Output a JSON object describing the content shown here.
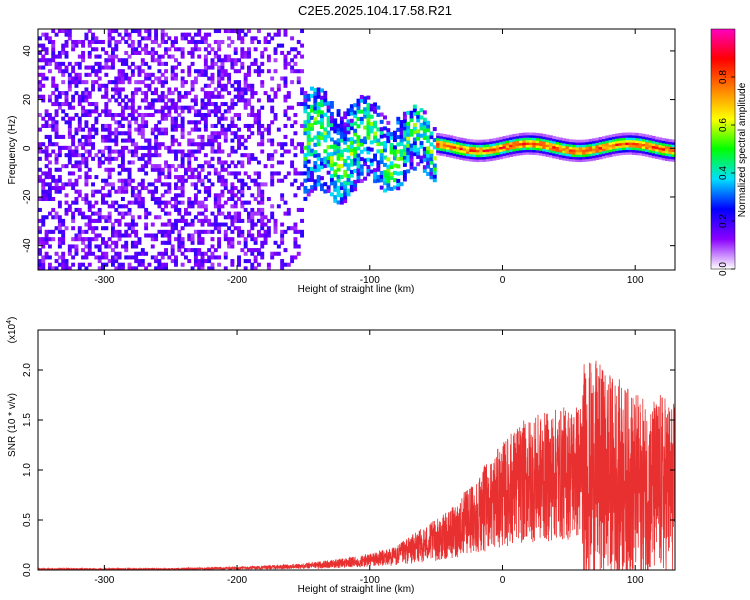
{
  "figure": {
    "title": "C2E5.2025.104.17.58.R21"
  },
  "chart_data": [
    {
      "type": "heatmap",
      "title": "C2E5.2025.104.17.58.R21",
      "xlabel": "Height of straight line (km)",
      "ylabel": "Frequency (Hz)",
      "xlim": [
        -350,
        130
      ],
      "ylim": [
        -50,
        49
      ],
      "x_ticks": [
        -300,
        -200,
        -100,
        0,
        100
      ],
      "y_ticks": [
        -40,
        -20,
        0,
        20,
        40
      ],
      "grid": false,
      "description_regions": [
        {
          "x_range": [
            -350,
            -150
          ],
          "pattern": "broadband low-amplitude noise across all frequencies",
          "amplitude": 0.15
        },
        {
          "x_range": [
            -150,
            -50
          ],
          "pattern": "spread signal between -25 and 25 Hz",
          "amplitude": 0.3
        },
        {
          "x_range": [
            -50,
            130
          ],
          "pattern": "narrow band centred near 0 Hz",
          "amplitude": 0.8
        }
      ],
      "colorbar": {
        "label": "Normalized spectral amplitude",
        "range": [
          0,
          1
        ],
        "ticks": [
          "0.0",
          "0.2",
          "0.4",
          "0.6",
          "0.8"
        ],
        "colors": [
          "#ffffff",
          "#8a00ff",
          "#0000ff",
          "#00e0ff",
          "#00ff00",
          "#ffff00",
          "#ff8000",
          "#ff0000",
          "#ff00c0"
        ]
      }
    },
    {
      "type": "line",
      "xlabel": "Height of straight line (km)",
      "ylabel": "SNR (10 * v/v)",
      "y_multiplier_label": "(x10",
      "y_multiplier_exp": "4",
      "y_multiplier_close": ")",
      "xlim": [
        -350,
        130
      ],
      "ylim": [
        0,
        2.4
      ],
      "x_ticks": [
        -300,
        -200,
        -100,
        0,
        100
      ],
      "y_ticks": [
        "0.0",
        "0.5",
        "1.0",
        "1.5",
        "2.0"
      ],
      "grid": false,
      "series": [
        {
          "color": "#e83030",
          "x": [
            -350,
            -300,
            -250,
            -200,
            -170,
            -150,
            -130,
            -110,
            -100,
            -90,
            -80,
            -70,
            -60,
            -50,
            -40,
            -30,
            -20,
            -10,
            0,
            10,
            20,
            30,
            40,
            50,
            60,
            70,
            80,
            90,
            100,
            110,
            120,
            130
          ],
          "y": [
            0.01,
            0.01,
            0.01,
            0.02,
            0.03,
            0.04,
            0.06,
            0.08,
            0.1,
            0.12,
            0.14,
            0.2,
            0.25,
            0.3,
            0.35,
            0.45,
            0.55,
            0.65,
            0.75,
            0.85,
            0.9,
            0.92,
            0.95,
            0.97,
            1.0,
            1.0,
            0.95,
            0.9,
            0.85,
            0.8,
            0.85,
            0.8
          ]
        }
      ]
    }
  ]
}
